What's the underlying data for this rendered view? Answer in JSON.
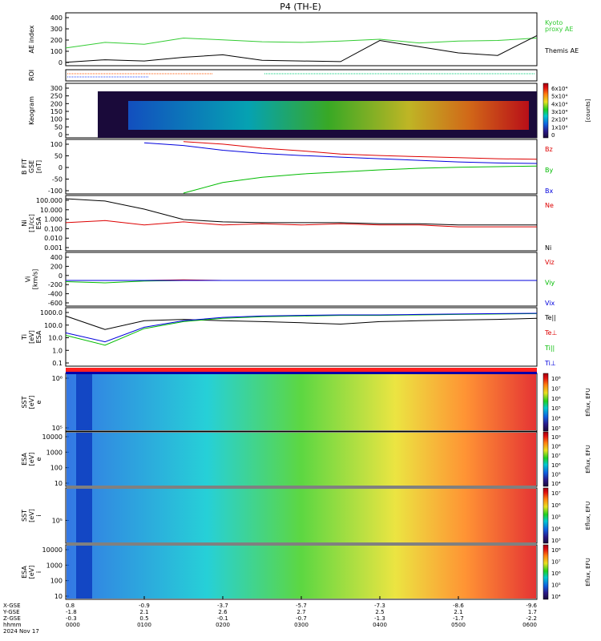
{
  "title": "P4 (TH-E)",
  "colors": {
    "black": "#000000",
    "red": "#dd0000",
    "green": "#00bb00",
    "blue": "#0000dd",
    "kyoto": "#33cc33",
    "roi_red": "#ff5500",
    "roi_green": "#00cc77",
    "roi_blue": "#2244ff"
  },
  "panels": [
    {
      "id": "ae",
      "ylabel": "AE index",
      "ticks": [
        "400",
        "300",
        "200",
        "100",
        "0"
      ],
      "legend": [
        {
          "text": "Kyoto",
          "color": "kyoto"
        },
        {
          "text": "proxy AE",
          "color": "kyoto"
        },
        {
          "text": "Themis AE",
          "color": "black"
        }
      ]
    },
    {
      "id": "roi",
      "ylabel": "ROI",
      "ticks": [],
      "legend": []
    },
    {
      "id": "keo",
      "ylabel": "Keogram",
      "ticks": [
        "300",
        "250",
        "200",
        "150",
        "100",
        "50",
        "0"
      ],
      "cbar_ticks": [
        "6x10⁴",
        "5x10⁴",
        "4x10⁴",
        "3x10⁴",
        "2x10⁴",
        "1x10⁴",
        "0"
      ],
      "cbar_label": "[counts]"
    },
    {
      "id": "bfit",
      "ylabel": "B FIT\nGSE\n[nT]",
      "ticks": [
        "100",
        "50",
        "0",
        "-50",
        "-100"
      ],
      "legend": [
        {
          "text": "Bz",
          "color": "red"
        },
        {
          "text": "By",
          "color": "green"
        },
        {
          "text": "Bx",
          "color": "blue"
        }
      ]
    },
    {
      "id": "ni",
      "ylabel": "Ni\n[1/cc]\nESA",
      "ticks": [
        "100.000",
        "10.000",
        "1.000",
        "0.100",
        "0.010",
        "0.001"
      ],
      "legend": [
        {
          "text": "Ne",
          "color": "red"
        },
        {
          "text": "Ni",
          "color": "black"
        }
      ]
    },
    {
      "id": "vi",
      "ylabel": "Vi\n[km/s]",
      "ticks": [
        "400",
        "200",
        "0",
        "-200",
        "-400",
        "-600"
      ],
      "legend": [
        {
          "text": "Viz",
          "color": "red"
        },
        {
          "text": "Viy",
          "color": "green"
        },
        {
          "text": "Vix",
          "color": "blue"
        }
      ]
    },
    {
      "id": "ti",
      "ylabel": "Ti\n[eV]\nESA",
      "ticks": [
        "1000.0",
        "100.0",
        "10.0",
        "1.0",
        "0.1"
      ],
      "legend": [
        {
          "text": "Te||",
          "color": "black"
        },
        {
          "text": "Te⊥",
          "color": "red"
        },
        {
          "text": "Ti||",
          "color": "green"
        },
        {
          "text": "Ti⊥",
          "color": "blue"
        }
      ]
    },
    {
      "id": "sst_e",
      "ylabel": "SST\n[eV]\ne",
      "ticks": [
        "10⁶",
        "10⁵"
      ],
      "cbar_ticks": [
        "10⁸",
        "10⁷",
        "10⁶",
        "10⁵",
        "10⁴",
        "10³"
      ],
      "cbar_label": "Eflux, EFU"
    },
    {
      "id": "esa_e",
      "ylabel": "ESA\n[eV]\ne",
      "ticks": [
        "10000",
        "1000",
        "100",
        "10"
      ],
      "cbar_ticks": [
        "10⁹",
        "10⁸",
        "10⁷",
        "10⁶",
        "10⁵",
        "10⁴"
      ],
      "cbar_label": "Eflux, EFU"
    },
    {
      "id": "sst_i",
      "ylabel": "SST\n[eV]\ni",
      "ticks": [
        "10⁵"
      ],
      "cbar_ticks": [
        "10⁷",
        "10⁶",
        "10⁵",
        "10⁴",
        "10³"
      ],
      "cbar_label": "Eflux, EFU"
    },
    {
      "id": "esa_i",
      "ylabel": "ESA\n[eV]\ni",
      "ticks": [
        "10000",
        "1000",
        "100",
        "10"
      ],
      "cbar_ticks": [
        "10⁸",
        "10⁷",
        "10⁶",
        "10⁵",
        "10⁴"
      ],
      "cbar_label": "Eflux, EFU"
    }
  ],
  "xaxis": {
    "row_labels": [
      "X-GSE",
      "Y-GSE",
      "Z-GSE",
      "hhmm",
      "2024 Nov 17"
    ],
    "ticks": [
      {
        "vals": [
          "0.8",
          "-1.8",
          "-0.3",
          "0000"
        ]
      },
      {
        "vals": [
          "-0.9",
          "2.1",
          "0.5",
          "0100"
        ]
      },
      {
        "vals": [
          "-3.7",
          "2.6",
          "-0.1",
          "0200"
        ]
      },
      {
        "vals": [
          "-5.7",
          "2.7",
          "-0.7",
          "0300"
        ]
      },
      {
        "vals": [
          "-7.3",
          "2.5",
          "-1.3",
          "0400"
        ]
      },
      {
        "vals": [
          "-8.6",
          "2.1",
          "-1.7",
          "0500"
        ]
      },
      {
        "vals": [
          "-9.6",
          "1.7",
          "-2.2",
          "0600"
        ]
      }
    ]
  },
  "chart_data": {
    "type": "line",
    "title": "P4 (TH-E)",
    "x_unit": "hhmm",
    "x": [
      "0000",
      "0030",
      "0100",
      "0130",
      "0200",
      "0230",
      "0300",
      "0330",
      "0400",
      "0430",
      "0500",
      "0530",
      "0600"
    ],
    "series": [
      {
        "name": "Kyoto proxy AE",
        "panel": "ae",
        "values": [
          130,
          175,
          160,
          210,
          195,
          180,
          175,
          185,
          200,
          170,
          185,
          190,
          210
        ]
      },
      {
        "name": "Themis AE",
        "panel": "ae",
        "values": [
          15,
          35,
          25,
          55,
          75,
          30,
          25,
          20,
          190,
          140,
          90,
          70,
          230
        ]
      },
      {
        "name": "Bz",
        "panel": "bfit",
        "values": [
          null,
          null,
          null,
          95,
          85,
          70,
          60,
          48,
          42,
          38,
          34,
          30,
          28
        ]
      },
      {
        "name": "By",
        "panel": "bfit",
        "values": [
          null,
          null,
          null,
          -100,
          -60,
          -40,
          -28,
          -20,
          -12,
          -6,
          -2,
          0,
          2
        ]
      },
      {
        "name": "Bx",
        "panel": "bfit",
        "values": [
          null,
          null,
          90,
          80,
          62,
          50,
          42,
          36,
          30,
          24,
          18,
          14,
          12
        ]
      },
      {
        "name": "Ne",
        "panel": "ni",
        "values": [
          0.5,
          0.8,
          0.3,
          0.6,
          0.3,
          0.4,
          0.3,
          0.4,
          0.3,
          0.3,
          0.2,
          0.2,
          0.2
        ]
      },
      {
        "name": "Ni",
        "panel": "ni",
        "values": [
          100,
          60,
          10,
          1,
          0.6,
          0.5,
          0.5,
          0.5,
          0.4,
          0.4,
          0.3,
          0.3,
          0.3
        ]
      },
      {
        "name": "Viz",
        "panel": "vi",
        "values": [
          0,
          0,
          0,
          10,
          0,
          0,
          0,
          0,
          0,
          0,
          0,
          0,
          0
        ]
      },
      {
        "name": "Viy",
        "panel": "vi",
        "values": [
          -20,
          -40,
          -10,
          0,
          0,
          0,
          0,
          0,
          0,
          0,
          0,
          0,
          0
        ]
      },
      {
        "name": "Vix",
        "panel": "vi",
        "values": [
          0,
          0,
          0,
          0,
          0,
          0,
          0,
          0,
          0,
          0,
          0,
          0,
          0
        ]
      },
      {
        "name": "Te||",
        "panel": "ti",
        "values": [
          800,
          50,
          300,
          400,
          300,
          250,
          200,
          150,
          250,
          300,
          350,
          400,
          500
        ]
      },
      {
        "name": "Ti||",
        "panel": "ti",
        "values": [
          15,
          2,
          60,
          250,
          500,
          700,
          800,
          900,
          900,
          1000,
          1100,
          1200,
          1300
        ]
      },
      {
        "name": "Ti⊥",
        "panel": "ti",
        "values": [
          25,
          4,
          80,
          300,
          600,
          800,
          900,
          1000,
          1000,
          1100,
          1200,
          1300,
          1400
        ]
      }
    ]
  }
}
